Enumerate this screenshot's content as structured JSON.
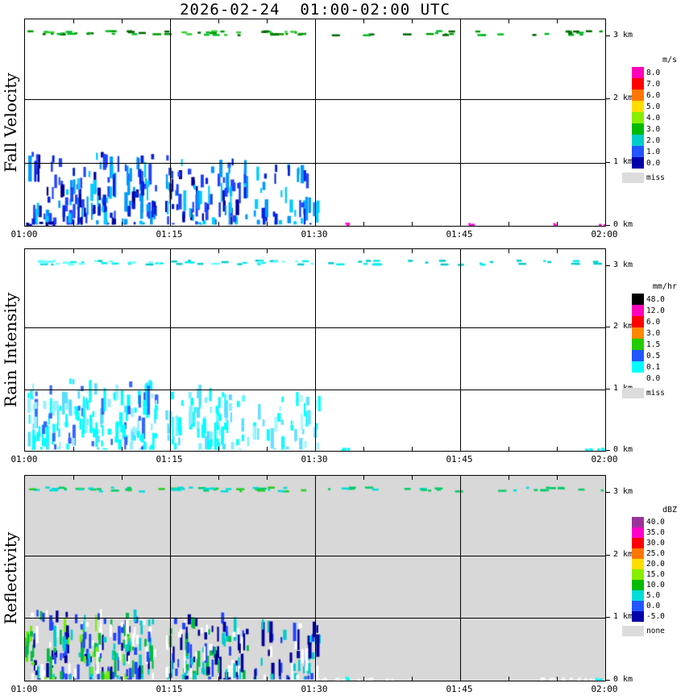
{
  "title": "2026-02-24  01:00-02:00 UTC",
  "seed": 20260224,
  "chart_data": [
    {
      "type": "heatmap",
      "panel_title": "Fall Velocity",
      "unit": "m/s",
      "x_ticks": [
        "01:00",
        "01:15",
        "01:30",
        "01:45",
        "02:00"
      ],
      "x_range_min": [
        0,
        60
      ],
      "y_ticks": [
        "0 km",
        "1 km",
        "2 km",
        "3 km"
      ],
      "y_range_km": [
        0,
        3.27
      ],
      "plot_bg": "#ffffff",
      "legend": [
        {
          "label": "8.0",
          "color": "#ff00bb"
        },
        {
          "label": "7.0",
          "color": "#ff0000"
        },
        {
          "label": "6.0",
          "color": "#ff7700"
        },
        {
          "label": "5.0",
          "color": "#ffdd00"
        },
        {
          "label": "4.0",
          "color": "#88ee00"
        },
        {
          "label": "3.0",
          "color": "#00bb00"
        },
        {
          "label": "2.0",
          "color": "#00cccc"
        },
        {
          "label": "1.0",
          "color": "#2255ff"
        },
        {
          "label": "0.0",
          "color": "#0000aa"
        }
      ],
      "missing": {
        "label": "miss",
        "color": "#dcdcdc"
      },
      "echoes": [
        {
          "style": "dashes",
          "t0": 0,
          "t1": 31,
          "h0": 3.0,
          "h1": 3.1,
          "density": 0.8,
          "colors": [
            "#009900",
            "#00bb22",
            "#006600",
            "#33cc33"
          ]
        },
        {
          "style": "dashes",
          "t0": 31,
          "t1": 60,
          "h0": 3.0,
          "h1": 3.1,
          "density": 0.45,
          "colors": [
            "#009900",
            "#00bb22",
            "#006600"
          ]
        },
        {
          "style": "streaks",
          "t0": 0.2,
          "t1": 13.5,
          "h0": 0.02,
          "h1": 1.18,
          "density": 0.5,
          "colors": [
            "#000099",
            "#0022dd",
            "#2244ff",
            "#2244ff",
            "#0099ff",
            "#00ccff"
          ]
        },
        {
          "style": "streaks",
          "t0": 14.5,
          "t1": 23,
          "h0": 0.02,
          "h1": 1.12,
          "density": 0.45,
          "colors": [
            "#000099",
            "#0022dd",
            "#2244ff",
            "#2244ff",
            "#0099ff",
            "#00ccff"
          ]
        },
        {
          "style": "streaks",
          "t0": 23.5,
          "t1": 30.5,
          "h0": 0.02,
          "h1": 1.02,
          "density": 0.3,
          "colors": [
            "#0022dd",
            "#2244ff",
            "#0099ff",
            "#00ccff"
          ]
        },
        {
          "style": "specks",
          "t0": 0,
          "t1": 3,
          "h0": 0,
          "h1": 0.07,
          "density": 0.5,
          "colors": [
            "#000099",
            "#ff00cc",
            "#000099"
          ]
        },
        {
          "style": "specks",
          "t0": 32.6,
          "t1": 33.4,
          "h0": 0,
          "h1": 0.05,
          "density": 0.8,
          "colors": [
            "#ff00cc"
          ]
        },
        {
          "style": "specks",
          "t0": 45.6,
          "t1": 46.4,
          "h0": 0,
          "h1": 0.05,
          "density": 0.8,
          "colors": [
            "#ff00cc"
          ]
        },
        {
          "style": "specks",
          "t0": 54.5,
          "t1": 55.1,
          "h0": 0,
          "h1": 0.05,
          "density": 0.7,
          "colors": [
            "#ff00cc"
          ]
        },
        {
          "style": "specks",
          "t0": 59.1,
          "t1": 59.9,
          "h0": 0,
          "h1": 0.05,
          "density": 0.8,
          "colors": [
            "#ff00cc"
          ]
        }
      ]
    },
    {
      "type": "heatmap",
      "panel_title": "Rain Intensity",
      "unit": "mm/hr",
      "x_ticks": [
        "01:00",
        "01:15",
        "01:30",
        "01:45",
        "02:00"
      ],
      "x_range_min": [
        0,
        60
      ],
      "y_ticks": [
        "0 km",
        "1 km",
        "2 km",
        "3 km"
      ],
      "y_range_km": [
        0,
        3.27
      ],
      "plot_bg": "#ffffff",
      "legend": [
        {
          "label": "48.0",
          "color": "#000000"
        },
        {
          "label": "12.0",
          "color": "#ff00bb"
        },
        {
          "label": "6.0",
          "color": "#ff0000"
        },
        {
          "label": "3.0",
          "color": "#ff8800"
        },
        {
          "label": "1.5",
          "color": "#22cc00"
        },
        {
          "label": "0.5",
          "color": "#2255ff"
        },
        {
          "label": "0.1",
          "color": "#00ffff"
        },
        {
          "label": "0.0",
          "color": "#ffffff"
        }
      ],
      "missing": {
        "label": "miss",
        "color": "#dcdcdc"
      },
      "echoes": [
        {
          "style": "dashes",
          "t0": 0,
          "t1": 31,
          "h0": 3.0,
          "h1": 3.1,
          "density": 0.8,
          "colors": [
            "#00eeee",
            "#00cccc",
            "#66ffff"
          ]
        },
        {
          "style": "dashes",
          "t0": 31,
          "t1": 60,
          "h0": 3.0,
          "h1": 3.1,
          "density": 0.45,
          "colors": [
            "#00eeee",
            "#00cccc"
          ]
        },
        {
          "style": "streaks",
          "t0": 0.2,
          "t1": 13.5,
          "h0": 0.02,
          "h1": 1.18,
          "density": 0.5,
          "colors": [
            "#00ffff",
            "#00ffff",
            "#00ffff",
            "#55ddff",
            "#3366ff",
            "#99eeff"
          ]
        },
        {
          "style": "streaks",
          "t0": 14.5,
          "t1": 23,
          "h0": 0.02,
          "h1": 1.1,
          "density": 0.42,
          "colors": [
            "#00ffff",
            "#00ffff",
            "#88eeff",
            "#55ddff"
          ]
        },
        {
          "style": "streaks",
          "t0": 23.5,
          "t1": 30.5,
          "h0": 0.02,
          "h1": 1.0,
          "density": 0.3,
          "colors": [
            "#00ffff",
            "#aaf5ff",
            "#66e0ff"
          ]
        },
        {
          "style": "specks",
          "t0": 32.6,
          "t1": 33.6,
          "h0": 0,
          "h1": 0.05,
          "density": 0.8,
          "colors": [
            "#00ffff"
          ]
        },
        {
          "style": "specks",
          "t0": 57.5,
          "t1": 60,
          "h0": 0,
          "h1": 0.05,
          "density": 0.6,
          "colors": [
            "#00ffff"
          ]
        }
      ]
    },
    {
      "type": "heatmap",
      "panel_title": "Reflectivity",
      "unit": "dBZ",
      "x_ticks": [
        "01:00",
        "01:15",
        "01:30",
        "01:45",
        "02:00"
      ],
      "x_range_min": [
        0,
        60
      ],
      "y_ticks": [
        "0 km",
        "1 km",
        "2 km",
        "3 km"
      ],
      "y_range_km": [
        0,
        3.27
      ],
      "plot_bg": "#d8d8d8",
      "legend": [
        {
          "label": "40.0",
          "color": "#993399"
        },
        {
          "label": "35.0",
          "color": "#ff00cc"
        },
        {
          "label": "30.0",
          "color": "#ff0000"
        },
        {
          "label": "25.0",
          "color": "#ff7700"
        },
        {
          "label": "20.0",
          "color": "#ffdd00"
        },
        {
          "label": "15.0",
          "color": "#88ee00"
        },
        {
          "label": "10.0",
          "color": "#00bb00"
        },
        {
          "label": "5.0",
          "color": "#00dddd"
        },
        {
          "label": "0.0",
          "color": "#2255ff"
        },
        {
          "label": "-5.0",
          "color": "#0000aa"
        }
      ],
      "missing": {
        "label": "none",
        "color": "#dcdcdc"
      },
      "echoes": [
        {
          "style": "dashes",
          "t0": 0,
          "t1": 31,
          "h0": 3.0,
          "h1": 3.1,
          "density": 0.8,
          "colors": [
            "#00dddd",
            "#00cc66",
            "#00dddd",
            "#22cc22"
          ]
        },
        {
          "style": "dashes",
          "t0": 31,
          "t1": 60,
          "h0": 3.0,
          "h1": 3.1,
          "density": 0.45,
          "colors": [
            "#00dddd",
            "#00cc66"
          ]
        },
        {
          "style": "streaks",
          "t0": 0.2,
          "t1": 13.5,
          "h0": 0.02,
          "h1": 1.15,
          "density": 0.65,
          "colors": [
            "#000099",
            "#2244ff",
            "#2244ff",
            "#00cccc",
            "#00bb44",
            "#ffffff",
            "#77ee00"
          ]
        },
        {
          "style": "streaks",
          "t0": 14.5,
          "t1": 23,
          "h0": 0.02,
          "h1": 1.1,
          "density": 0.55,
          "colors": [
            "#000099",
            "#2244ff",
            "#00cccc",
            "#00bb44",
            "#ffffff"
          ]
        },
        {
          "style": "streaks",
          "t0": 23.5,
          "t1": 30.5,
          "h0": 0.02,
          "h1": 1.0,
          "density": 0.4,
          "colors": [
            "#2244ff",
            "#00cccc",
            "#000099",
            "#ffffff"
          ]
        },
        {
          "style": "streaks",
          "t0": 0,
          "t1": 0.8,
          "h0": 0.25,
          "h1": 0.85,
          "density": 0.9,
          "colors": [
            "#55ee00",
            "#00bb44"
          ]
        },
        {
          "style": "specks",
          "t0": 30,
          "t1": 38,
          "h0": 0,
          "h1": 0.05,
          "density": 0.5,
          "colors": [
            "#ffffff"
          ]
        },
        {
          "style": "specks",
          "t0": 53,
          "t1": 60,
          "h0": 0,
          "h1": 0.05,
          "density": 0.5,
          "colors": [
            "#ffffff"
          ]
        },
        {
          "style": "specks",
          "t0": 32.8,
          "t1": 33.4,
          "h0": 0,
          "h1": 0.06,
          "density": 0.9,
          "colors": [
            "#00ffff"
          ]
        },
        {
          "style": "specks",
          "t0": 58.8,
          "t1": 59.6,
          "h0": 0,
          "h1": 0.06,
          "density": 0.9,
          "colors": [
            "#00ffff"
          ]
        }
      ]
    }
  ]
}
